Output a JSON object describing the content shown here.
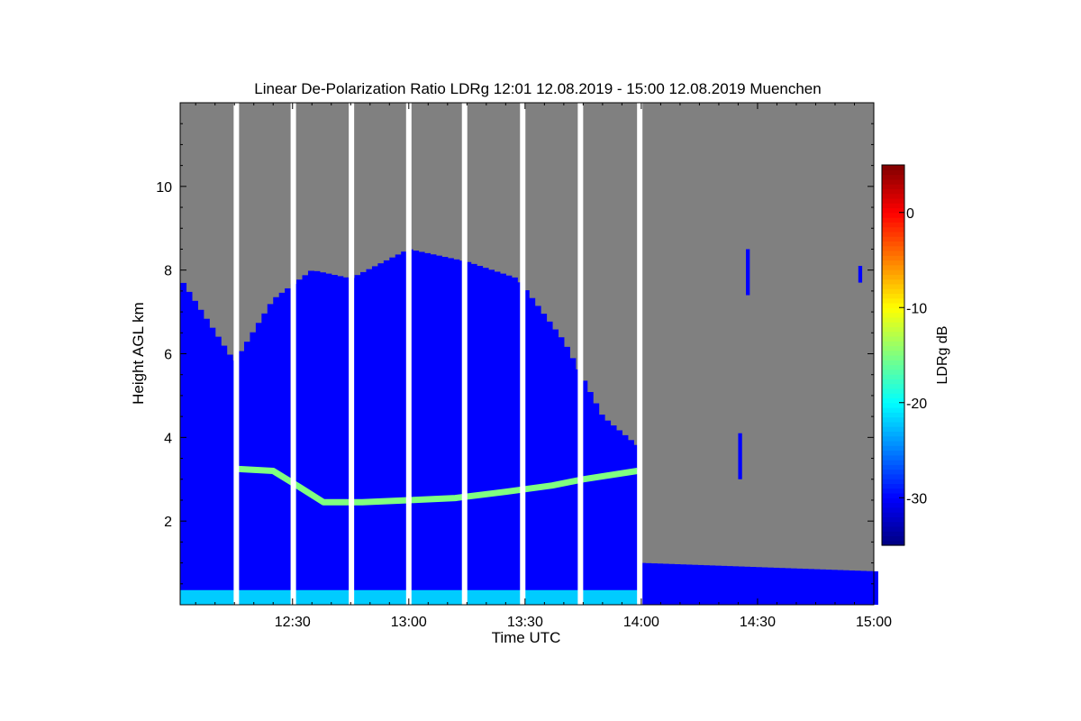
{
  "chart_data": {
    "type": "heatmap",
    "title": "Linear De-Polarization Ratio LDRg   12:01 12.08.2019 - 15:00 12.08.2019 Muenchen",
    "xlabel": "Time UTC",
    "ylabel": "Height AGL km",
    "xlim_minutes_utc": [
      721,
      900
    ],
    "ylim_km": [
      0,
      12
    ],
    "x_ticks": [
      {
        "minute": 750,
        "label": "12:30"
      },
      {
        "minute": 780,
        "label": "13:00"
      },
      {
        "minute": 810,
        "label": "13:30"
      },
      {
        "minute": 840,
        "label": "14:00"
      },
      {
        "minute": 870,
        "label": "14:30"
      },
      {
        "minute": 900,
        "label": "15:00"
      }
    ],
    "y_ticks": [
      {
        "value": 2,
        "label": "2"
      },
      {
        "value": 4,
        "label": "4"
      },
      {
        "value": 6,
        "label": "6"
      },
      {
        "value": 8,
        "label": "8"
      },
      {
        "value": 10,
        "label": "10"
      }
    ],
    "no_data_color": "#808080",
    "colorbar": {
      "label": "LDRg dB",
      "range_db": [
        -35,
        5
      ],
      "ticks": [
        {
          "value": 0,
          "label": "0"
        },
        {
          "value": -10,
          "label": "-10"
        },
        {
          "value": -20,
          "label": "-20"
        },
        {
          "value": -30,
          "label": "-30"
        }
      ],
      "colormap": "jet"
    },
    "data_gaps_minutes_utc": [
      735.5,
      750.2,
      765.2,
      780.0,
      794.4,
      809.4,
      824.3,
      839.6
    ],
    "features": {
      "signal_top_km": [
        {
          "minute": 721,
          "km": 7.8
        },
        {
          "minute": 735,
          "km": 5.8
        },
        {
          "minute": 745,
          "km": 7.3
        },
        {
          "minute": 755,
          "km": 8.0
        },
        {
          "minute": 765,
          "km": 7.8
        },
        {
          "minute": 780,
          "km": 8.5
        },
        {
          "minute": 795,
          "km": 8.2
        },
        {
          "minute": 808,
          "km": 7.8
        },
        {
          "minute": 820,
          "km": 6.3
        },
        {
          "minute": 830,
          "km": 4.5
        },
        {
          "minute": 839,
          "km": 3.8
        },
        {
          "minute": 840,
          "km": 1.0
        },
        {
          "minute": 900,
          "km": 0.8
        }
      ],
      "melting_layer_km": [
        {
          "minute": 735,
          "km": 3.25
        },
        {
          "minute": 745,
          "km": 3.2
        },
        {
          "minute": 752,
          "km": 2.8
        },
        {
          "minute": 758,
          "km": 2.45
        },
        {
          "minute": 768,
          "km": 2.45
        },
        {
          "minute": 780,
          "km": 2.5
        },
        {
          "minute": 792,
          "km": 2.55
        },
        {
          "minute": 805,
          "km": 2.7
        },
        {
          "minute": 817,
          "km": 2.85
        },
        {
          "minute": 825,
          "km": 3.0
        },
        {
          "minute": 839,
          "km": 3.2
        }
      ],
      "melting_layer_ldr_db": -15,
      "precip_ldr_db": -30,
      "near_surface_ldr_db": -22,
      "isolated_echoes": [
        {
          "minute_start": 865,
          "minute_end": 866,
          "km_bottom": 3.0,
          "km_top": 4.1
        },
        {
          "minute_start": 867,
          "minute_end": 868,
          "km_bottom": 7.4,
          "km_top": 8.5
        },
        {
          "minute_start": 896,
          "minute_end": 897,
          "km_bottom": 7.7,
          "km_top": 8.1
        }
      ]
    }
  }
}
